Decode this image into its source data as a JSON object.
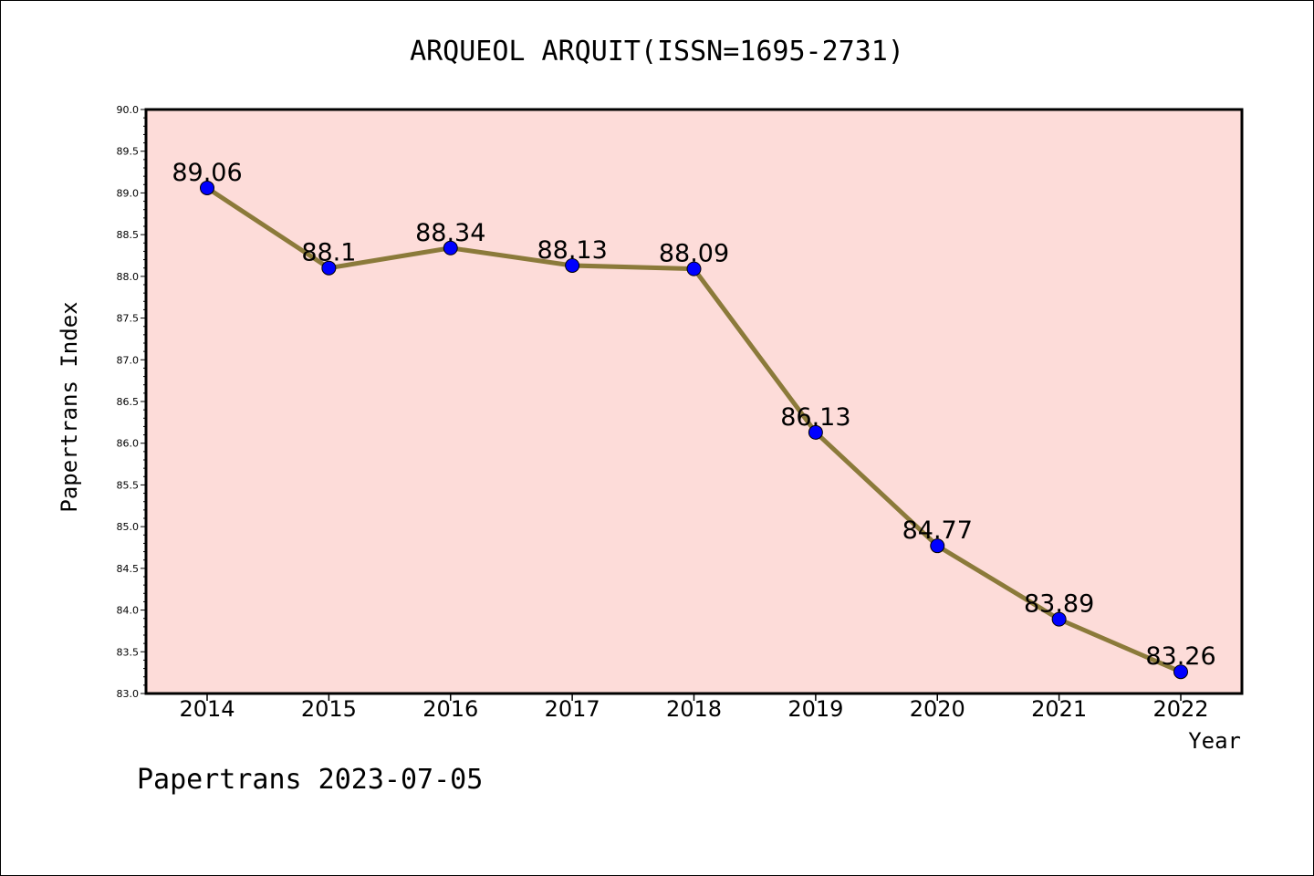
{
  "chart_data": {
    "type": "line",
    "title": "ARQUEOL ARQUIT(ISSN=1695-2731)",
    "xlabel": "Year",
    "ylabel": "Papertrans Index",
    "footer": "Papertrans 2023-07-05",
    "x": [
      "2014",
      "2015",
      "2016",
      "2017",
      "2018",
      "2019",
      "2020",
      "2021",
      "2022"
    ],
    "series": [
      {
        "values": [
          89.06,
          88.1,
          88.34,
          88.13,
          88.09,
          86.13,
          84.77,
          83.89,
          83.26
        ]
      }
    ],
    "data_labels": [
      "89.06",
      "88.1",
      "88.34",
      "88.13",
      "88.09",
      "86.13",
      "84.77",
      "83.89",
      "83.26"
    ],
    "ylim": [
      83.0,
      90.0
    ],
    "yticks": [
      "83.0",
      "83.5",
      "84.0",
      "84.5",
      "85.0",
      "85.5",
      "86.0",
      "86.5",
      "87.0",
      "87.5",
      "88.0",
      "88.5",
      "89.0",
      "89.5",
      "90.0"
    ],
    "grid": false,
    "colors": {
      "plot_background": "#fddcd9",
      "line": "#8b7a3a",
      "marker": "#0000ff"
    }
  }
}
